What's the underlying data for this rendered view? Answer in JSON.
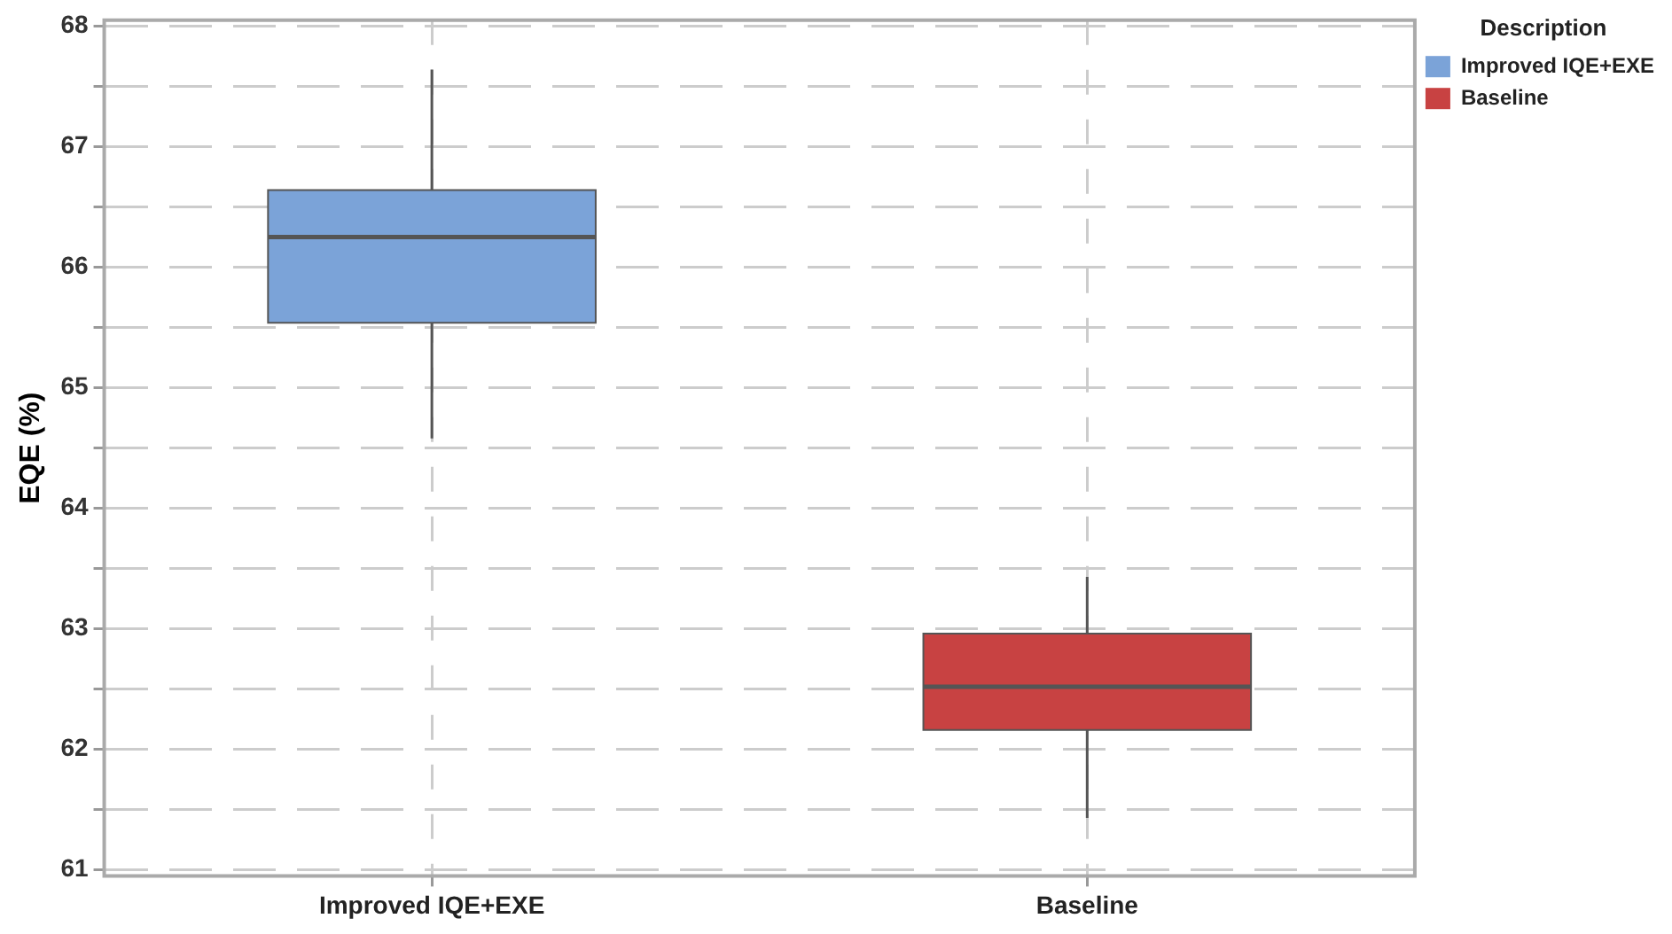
{
  "chart_data": {
    "type": "box",
    "ylabel": "EQE (%)",
    "legend_title": "Description",
    "legend": "top right",
    "grid": true,
    "categories": [
      "Improved IQE+EXE",
      "Baseline"
    ],
    "series": [
      {
        "name": "Improved IQE+EXE",
        "color": "#7ba3d8",
        "boxes": [
          {
            "low": 64.58,
            "q1": 65.54,
            "median": 66.25,
            "q3": 66.64,
            "high": 67.64
          },
          null
        ]
      },
      {
        "name": "Baseline",
        "color": "#c84242",
        "boxes": [
          null,
          {
            "low": 61.43,
            "q1": 62.16,
            "median": 62.52,
            "q3": 62.96,
            "high": 63.43
          }
        ]
      }
    ],
    "ylim": [
      60.95,
      68.05
    ],
    "yticks": [
      61,
      {
        "value": 61.5,
        "label": null
      },
      62,
      {
        "value": 62.5,
        "label": null
      },
      63,
      {
        "value": 63.5,
        "label": null
      },
      64,
      {
        "value": 64.5,
        "label": null
      },
      65,
      {
        "value": 65.5,
        "label": null
      },
      66,
      {
        "value": 66.5,
        "label": null
      },
      67,
      {
        "value": 67.5,
        "label": null
      },
      68
    ]
  }
}
